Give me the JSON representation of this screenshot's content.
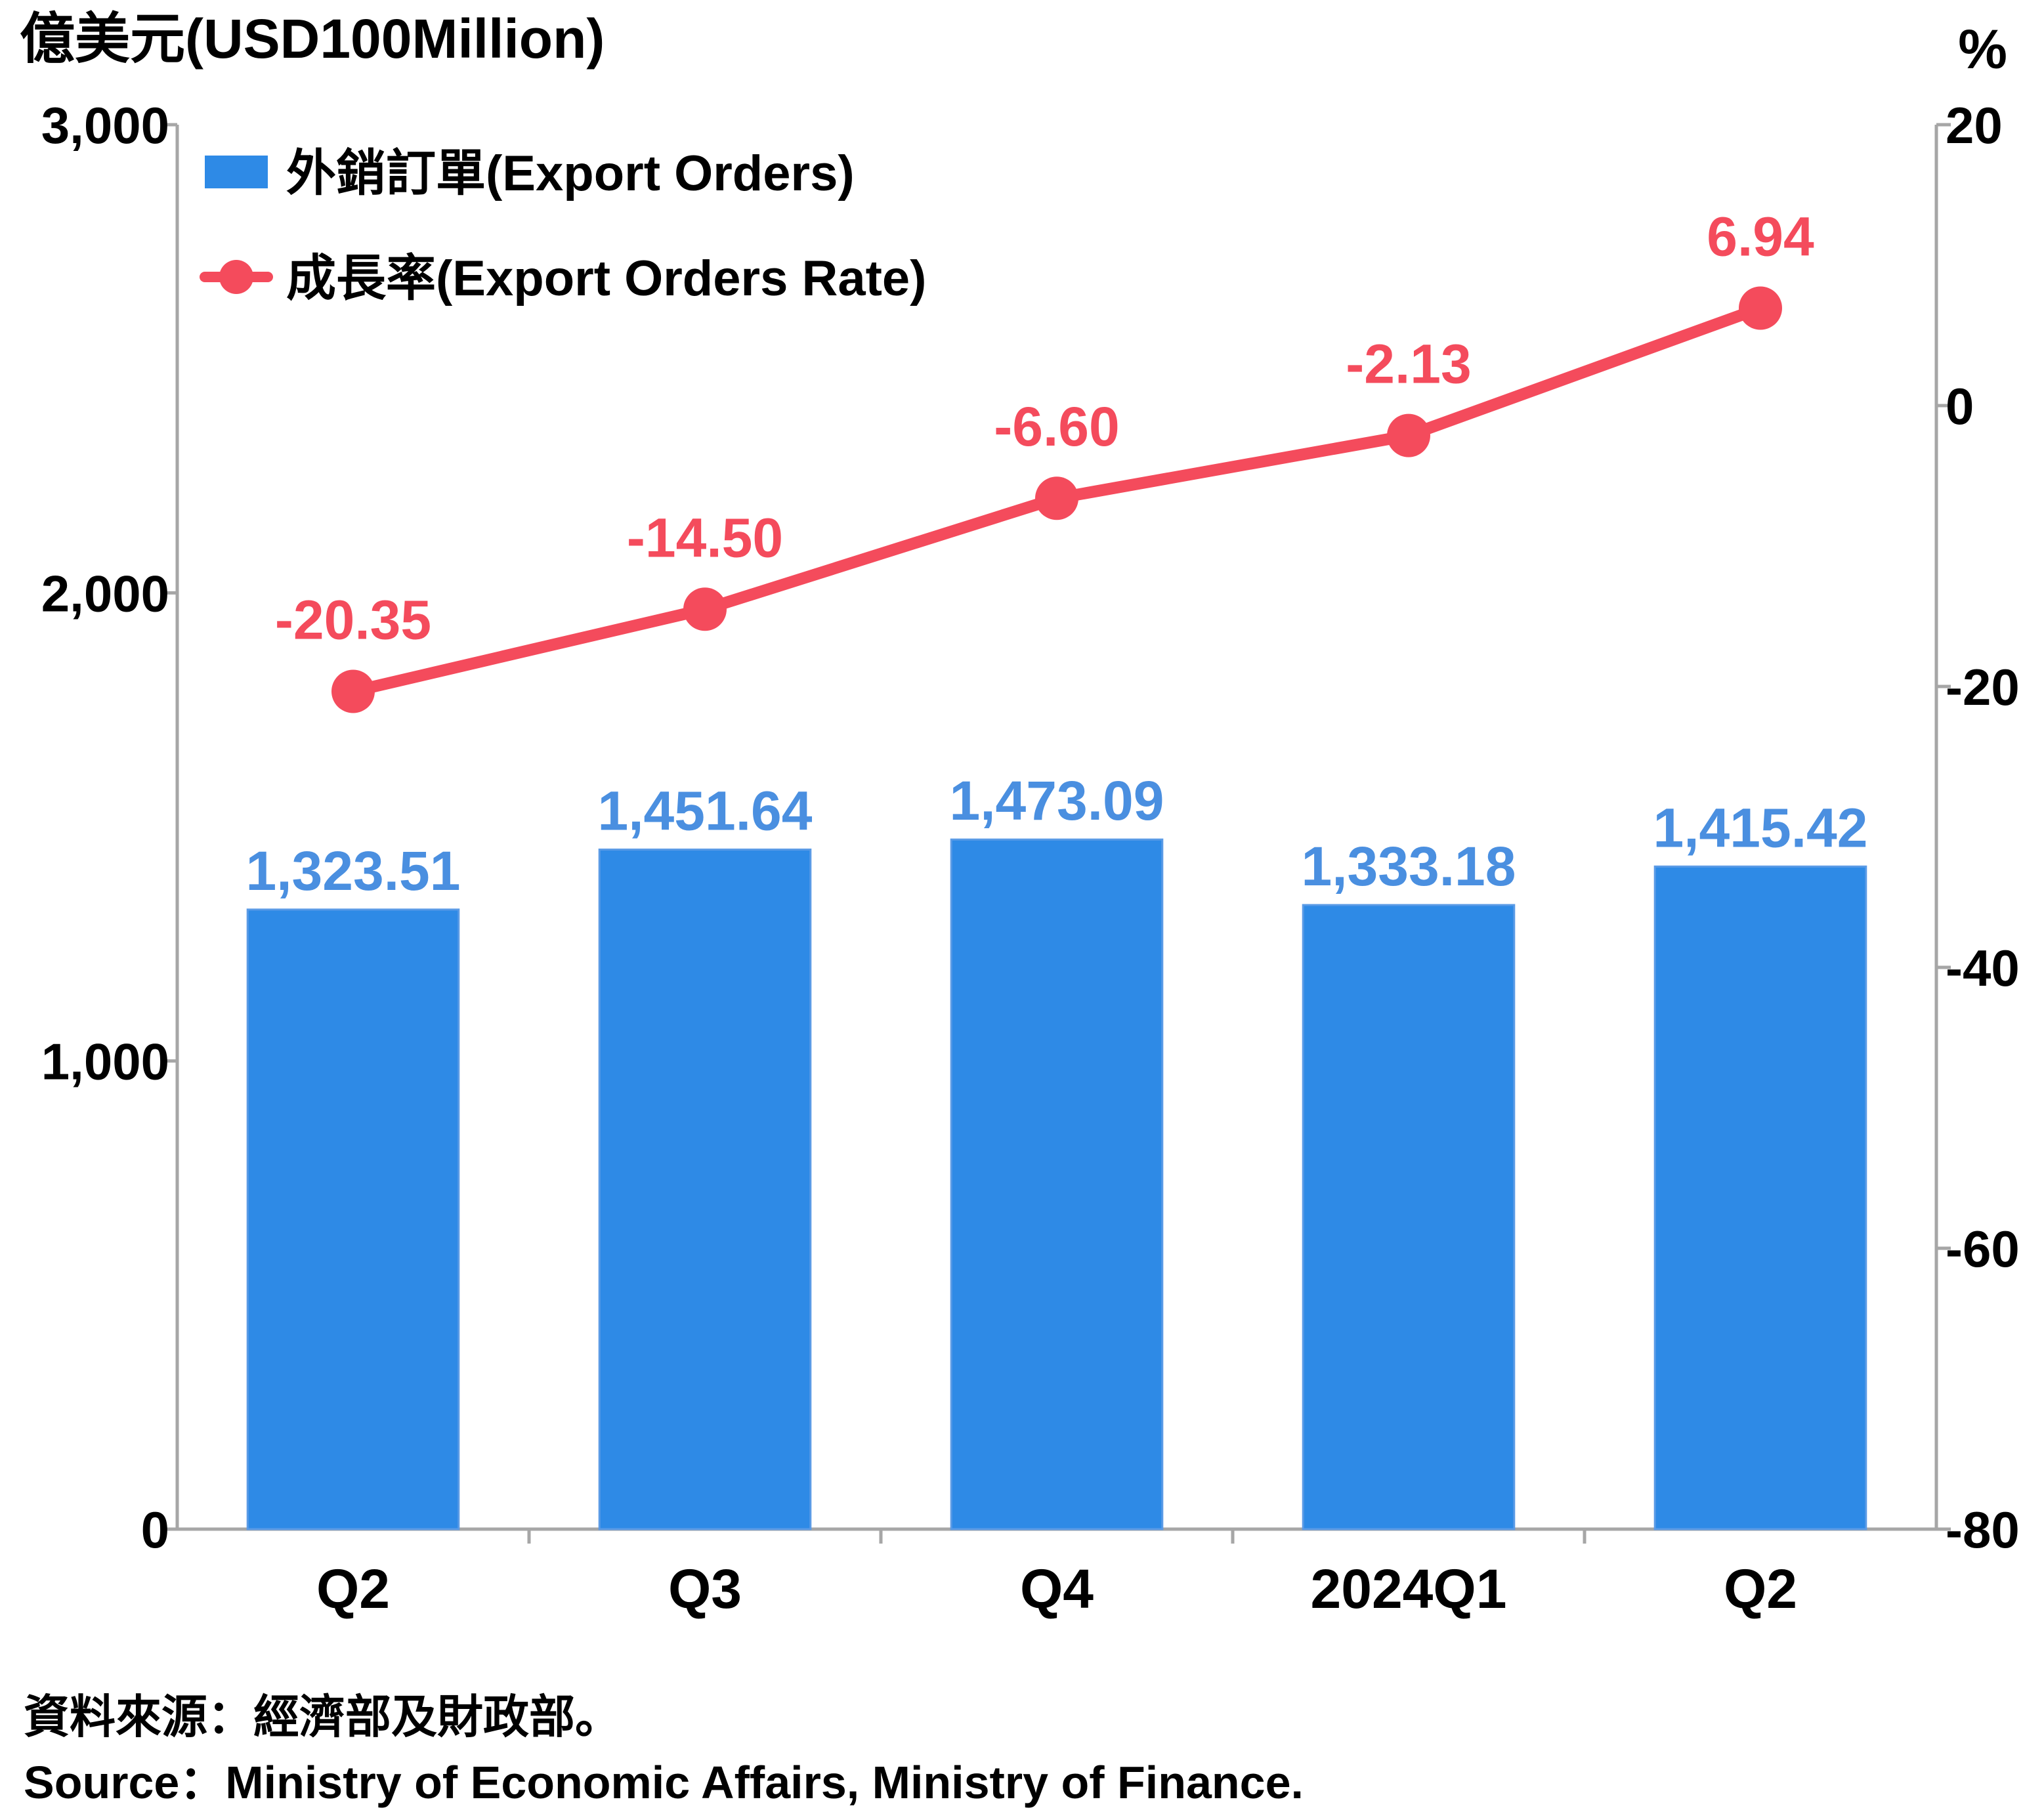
{
  "chart_data": {
    "type": "bar",
    "categories": [
      "Q2",
      "Q3",
      "Q4",
      "2024Q1",
      "Q2"
    ],
    "y_left_label": "億美元(USD100Million)",
    "y_right_label": "%",
    "y_left_ticks": [
      "0",
      "1,000",
      "2,000",
      "3,000"
    ],
    "y_right_ticks": [
      "-80",
      "-60",
      "-40",
      "-20",
      "0",
      "20"
    ],
    "ylim_left": [
      0,
      3000
    ],
    "ylim_right": [
      -80,
      20
    ],
    "series": [
      {
        "name": "外銷訂單(Export Orders)",
        "type": "bar",
        "axis": "left",
        "color": "#2E8AE6",
        "label_color": "#4A8FE0",
        "values": [
          1323.51,
          1451.64,
          1473.09,
          1333.18,
          1415.42
        ],
        "labels": [
          "1,323.51",
          "1,451.64",
          "1,473.09",
          "1,333.18",
          "1,415.42"
        ]
      },
      {
        "name": "成長率(Export Orders Rate)",
        "type": "line",
        "axis": "right",
        "color": "#F44B5C",
        "values": [
          -20.35,
          -14.5,
          -6.6,
          -2.13,
          6.94
        ],
        "labels": [
          "-20.35",
          "-14.50",
          "-6.60",
          "-2.13",
          "6.94"
        ]
      }
    ],
    "legend_position": "top-left"
  },
  "source": {
    "zh": "資料來源：經濟部及財政部。",
    "en": "Source：Ministry of Economic Affairs, Ministry of Finance."
  }
}
